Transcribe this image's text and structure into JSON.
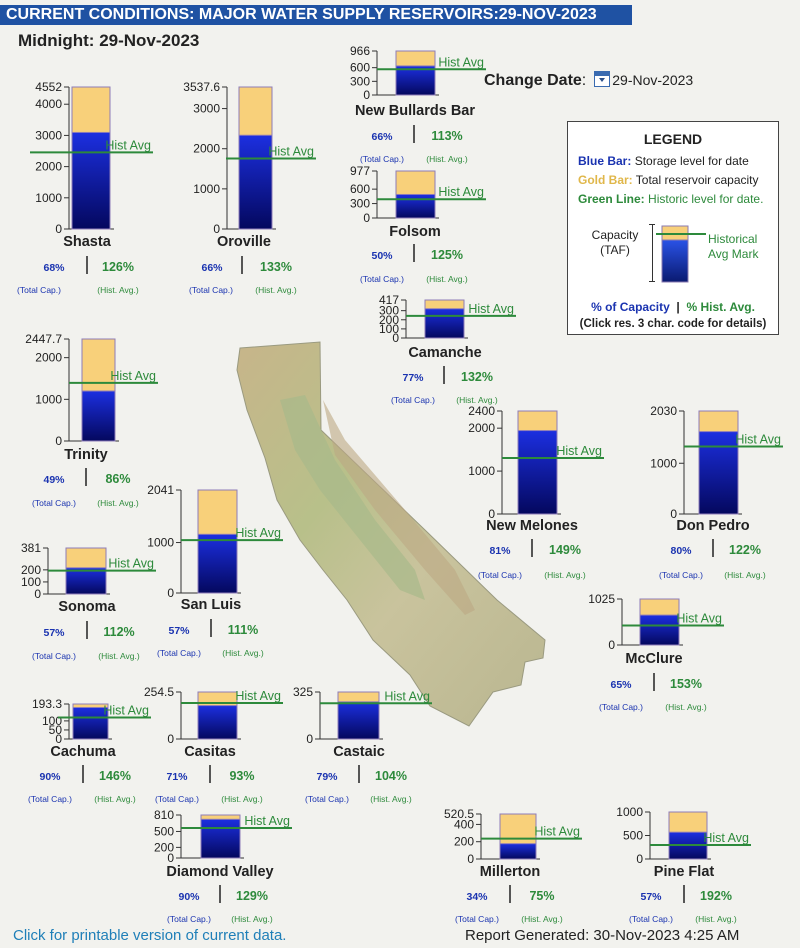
{
  "header": {
    "title": "CURRENT CONDITIONS: MAJOR WATER SUPPLY RESERVOIRS:29-NOV-2023",
    "midnight": "Midnight: 29-Nov-2023",
    "change_date_label": "Change Date",
    "change_date_value": "29-Nov-2023"
  },
  "legend": {
    "title": "LEGEND",
    "blue_key": "Blue Bar:",
    "blue_text": "Storage level for date",
    "gold_key": "Gold Bar:",
    "gold_text": "Total reservoir capacity",
    "green_key": "Green Line:",
    "green_text": "Historic level for date.",
    "capacity": "Capacity",
    "taf": "(TAF)",
    "hist_mark_1": "Historical",
    "hist_mark_2": "Avg Mark",
    "pct_capacity": "% of Capacity",
    "separator": "|",
    "pct_hist": "% Hist. Avg.",
    "click_note": "(Click res. 3 char. code for details)"
  },
  "footer": {
    "printable_link": "Click for printable version of current data.",
    "report_generated": "Report Generated: 30-Nov-2023 4:25 AM"
  },
  "colors": {
    "banner": "#1f52a3",
    "capacity_gold": "#f8d07a",
    "storage_blue_top": "#1c2fe0",
    "storage_blue_bottom": "#04085e",
    "hist_green": "#2d8a3b",
    "pct_capacity_blue": "#1a33b0",
    "pct_hist_green": "#2d8a3b"
  },
  "chart_data": {
    "type": "bar",
    "units": "TAF",
    "hist_label": "Hist Avg",
    "total_cap_label": "(Total Cap.)",
    "hist_avg_label": "(Hist. Avg.)",
    "reservoirs": [
      {
        "name": "Shasta",
        "capacity": 4552,
        "storage": 3095,
        "hist_avg": 2456,
        "pct_capacity": "68%",
        "pct_hist": "126%",
        "ticks": [
          {
            "v": 0,
            "t": "0"
          },
          {
            "v": 1000,
            "t": "1000"
          },
          {
            "v": 2000,
            "t": "2000"
          },
          {
            "v": 3000,
            "t": "3000"
          },
          {
            "v": 4000,
            "t": "4000"
          },
          {
            "v": 4552,
            "t": "4552"
          }
        ]
      },
      {
        "name": "Oroville",
        "capacity": 3537.6,
        "storage": 2335,
        "hist_avg": 1755,
        "pct_capacity": "66%",
        "pct_hist": "133%",
        "ticks": [
          {
            "v": 0,
            "t": "0"
          },
          {
            "v": 1000,
            "t": "1000"
          },
          {
            "v": 2000,
            "t": "2000"
          },
          {
            "v": 3000,
            "t": "3000"
          },
          {
            "v": 3537.6,
            "t": "3537.6"
          }
        ]
      },
      {
        "name": "New Bullards Bar",
        "capacity": 966,
        "storage": 638,
        "hist_avg": 565,
        "pct_capacity": "66%",
        "pct_hist": "113%",
        "ticks": [
          {
            "v": 0,
            "t": "0"
          },
          {
            "v": 300,
            "t": "300"
          },
          {
            "v": 600,
            "t": "600"
          },
          {
            "v": 966,
            "t": "966"
          }
        ]
      },
      {
        "name": "Folsom",
        "capacity": 977,
        "storage": 489,
        "hist_avg": 391,
        "pct_capacity": "50%",
        "pct_hist": "125%",
        "ticks": [
          {
            "v": 0,
            "t": "0"
          },
          {
            "v": 300,
            "t": "300"
          },
          {
            "v": 600,
            "t": "600"
          },
          {
            "v": 977,
            "t": "977"
          }
        ]
      },
      {
        "name": "Camanche",
        "capacity": 417,
        "storage": 321,
        "hist_avg": 243,
        "pct_capacity": "77%",
        "pct_hist": "132%",
        "ticks": [
          {
            "v": 0,
            "t": "0"
          },
          {
            "v": 100,
            "t": "100"
          },
          {
            "v": 200,
            "t": "200"
          },
          {
            "v": 300,
            "t": "300"
          },
          {
            "v": 417,
            "t": "417"
          }
        ]
      },
      {
        "name": "Trinity",
        "capacity": 2447.7,
        "storage": 1199,
        "hist_avg": 1394,
        "pct_capacity": "49%",
        "pct_hist": "86%",
        "ticks": [
          {
            "v": 0,
            "t": "0"
          },
          {
            "v": 1000,
            "t": "1000"
          },
          {
            "v": 2000,
            "t": "2000"
          },
          {
            "v": 2447.7,
            "t": "2447.7"
          }
        ]
      },
      {
        "name": "New Melones",
        "capacity": 2400,
        "storage": 1944,
        "hist_avg": 1305,
        "pct_capacity": "81%",
        "pct_hist": "149%",
        "ticks": [
          {
            "v": 0,
            "t": "0"
          },
          {
            "v": 1000,
            "t": "1000"
          },
          {
            "v": 2000,
            "t": "2000"
          },
          {
            "v": 2400,
            "t": "2400"
          }
        ]
      },
      {
        "name": "Don Pedro",
        "capacity": 2030,
        "storage": 1624,
        "hist_avg": 1331,
        "pct_capacity": "80%",
        "pct_hist": "122%",
        "ticks": [
          {
            "v": 0,
            "t": "0"
          },
          {
            "v": 1000,
            "t": "1000"
          },
          {
            "v": 2030,
            "t": "2030"
          }
        ]
      },
      {
        "name": "San Luis",
        "capacity": 2041,
        "storage": 1163,
        "hist_avg": 1048,
        "pct_capacity": "57%",
        "pct_hist": "111%",
        "ticks": [
          {
            "v": 0,
            "t": "0"
          },
          {
            "v": 1000,
            "t": "1000"
          },
          {
            "v": 2041,
            "t": "2041"
          }
        ]
      },
      {
        "name": "Sonoma",
        "capacity": 381,
        "storage": 217,
        "hist_avg": 194,
        "pct_capacity": "57%",
        "pct_hist": "112%",
        "ticks": [
          {
            "v": 0,
            "t": "0"
          },
          {
            "v": 100,
            "t": "100"
          },
          {
            "v": 200,
            "t": "200"
          },
          {
            "v": 381,
            "t": "381"
          }
        ]
      },
      {
        "name": "McClure",
        "capacity": 1025,
        "storage": 666,
        "hist_avg": 435,
        "pct_capacity": "65%",
        "pct_hist": "153%",
        "ticks": [
          {
            "v": 0,
            "t": "0"
          },
          {
            "v": 1025,
            "t": "1025"
          }
        ]
      },
      {
        "name": "Cachuma",
        "capacity": 193.3,
        "storage": 174,
        "hist_avg": 119,
        "pct_capacity": "90%",
        "pct_hist": "146%",
        "ticks": [
          {
            "v": 0,
            "t": "0"
          },
          {
            "v": 50,
            "t": "50"
          },
          {
            "v": 100,
            "t": "100"
          },
          {
            "v": 193.3,
            "t": "193.3"
          }
        ]
      },
      {
        "name": "Casitas",
        "capacity": 254.5,
        "storage": 181,
        "hist_avg": 195,
        "pct_capacity": "71%",
        "pct_hist": "93%",
        "ticks": [
          {
            "v": 0,
            "t": "0"
          },
          {
            "v": 254.5,
            "t": "254.5"
          }
        ]
      },
      {
        "name": "Castaic",
        "capacity": 325,
        "storage": 257,
        "hist_avg": 247,
        "pct_capacity": "79%",
        "pct_hist": "104%",
        "ticks": [
          {
            "v": 0,
            "t": "0"
          },
          {
            "v": 325,
            "t": "325"
          }
        ]
      },
      {
        "name": "Diamond Valley",
        "capacity": 810,
        "storage": 729,
        "hist_avg": 565,
        "pct_capacity": "90%",
        "pct_hist": "129%",
        "ticks": [
          {
            "v": 0,
            "t": "0"
          },
          {
            "v": 200,
            "t": "200"
          },
          {
            "v": 500,
            "t": "500"
          },
          {
            "v": 810,
            "t": "810"
          }
        ]
      },
      {
        "name": "Millerton",
        "capacity": 520.5,
        "storage": 177,
        "hist_avg": 236,
        "pct_capacity": "34%",
        "pct_hist": "75%",
        "ticks": [
          {
            "v": 0,
            "t": "0"
          },
          {
            "v": 200,
            "t": "200"
          },
          {
            "v": 400,
            "t": "400"
          },
          {
            "v": 520.5,
            "t": "520.5"
          }
        ]
      },
      {
        "name": "Pine Flat",
        "capacity": 1000,
        "storage": 570,
        "hist_avg": 297,
        "pct_capacity": "57%",
        "pct_hist": "192%",
        "ticks": [
          {
            "v": 0,
            "t": "0"
          },
          {
            "v": 500,
            "t": "500"
          },
          {
            "v": 1000,
            "t": "1000"
          }
        ]
      }
    ]
  }
}
